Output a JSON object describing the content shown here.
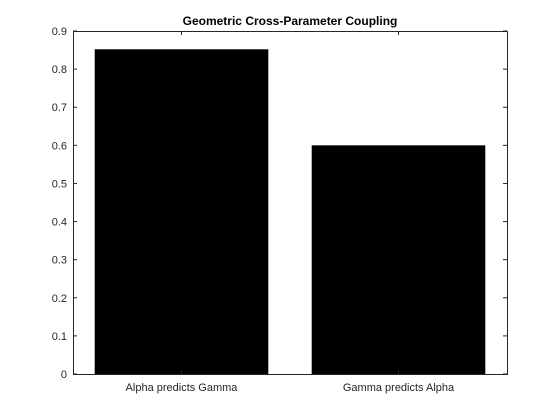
{
  "chart_data": {
    "type": "bar",
    "title": "Geometric Cross-Parameter Coupling",
    "xlabel": "",
    "ylabel": "",
    "categories": [
      "Alpha predicts Gamma",
      "Gamma predicts Alpha"
    ],
    "values": [
      0.852,
      0.6
    ],
    "ylim": [
      0,
      0.9
    ],
    "yticks": [
      "0",
      "0.1",
      "0.2",
      "0.3",
      "0.4",
      "0.5",
      "0.6",
      "0.7",
      "0.8",
      "0.9"
    ],
    "grid": false,
    "legend": "none",
    "bar_color": "#000000"
  }
}
